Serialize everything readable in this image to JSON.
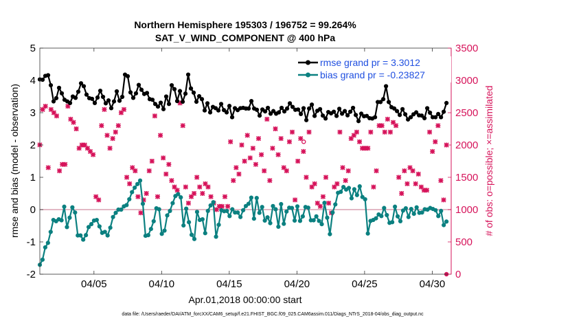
{
  "chart_data": {
    "type": "line",
    "title_line1": "Northern Hemisphere 195303 / 196752 = 99.264%",
    "title_line2": "SAT_V_WIND_COMPONENT @ 400 hPa",
    "xlabel": "Apr.01,2018 00:00:00 start",
    "ylabel_left": "rmse and bias (model - observation)",
    "ylabel_right": "# of obs: o=possible; ×=assimilated",
    "footnote": "data file: /Users/raeder/DAI/ATM_forcXX/CAM6_setup/f.e21.FHIST_BGC.f09_025.CAM6assim.011/Diags_NTrS_2018-04/obs_diag_output.nc",
    "xlim": [
      1,
      31.4
    ],
    "x_ticks": [
      5,
      10,
      15,
      20,
      25,
      30
    ],
    "x_tick_labels": [
      "04/05",
      "04/10",
      "04/15",
      "04/20",
      "04/25",
      "04/30"
    ],
    "ylim_left": [
      -2,
      5
    ],
    "y_ticks_left": [
      "-2",
      "-1",
      "0",
      "1",
      "2",
      "3",
      "4",
      "5"
    ],
    "ylim_right": [
      0,
      3500
    ],
    "y_ticks_right": [
      "0",
      "500",
      "1000",
      "1500",
      "2000",
      "2500",
      "3000",
      "3500"
    ],
    "colors": {
      "rmse": "#000000",
      "bias": "#0b8080",
      "obs": "#d6135a",
      "zero_line": "#d8a0b0",
      "legend_text": "#1f4fe0"
    },
    "series": [
      {
        "name": "rmse grand pr = 3.3012",
        "key": "rmse",
        "values": [
          4.03,
          4.02,
          4.14,
          4.16,
          3.85,
          3.35,
          3.45,
          3.77,
          3.6,
          3.4,
          3.35,
          3.3,
          3.5,
          3.46,
          3.65,
          3.91,
          3.82,
          3.56,
          3.45,
          3.43,
          3.3,
          3.47,
          3.68,
          3.49,
          3.29,
          3.38,
          3.14,
          3.35,
          3.66,
          3.37,
          3.49,
          4.18,
          4.13,
          3.63,
          3.46,
          3.6,
          3.86,
          3.71,
          3.58,
          3.61,
          3.42,
          3.4,
          3.27,
          3.19,
          3.31,
          3.11,
          3.5,
          3.27,
          3.85,
          3.73,
          3.36,
          3.67,
          3.34,
          3.59,
          4.18,
          3.75,
          3.62,
          3.34,
          3.51,
          3.42,
          3.07,
          3.29,
          3.01,
          3.18,
          3.14,
          3.07,
          3.27,
          3.08,
          3.01,
          3.21,
          2.86,
          3.14,
          3.08,
          3.14,
          3.15,
          3.13,
          3.13,
          3.36,
          3.13,
          3.09,
          2.91,
          3.1,
          3.04,
          3.15,
          2.97,
          3.05,
          2.97,
          3.01,
          3.15,
          3.04,
          3.13,
          3.29,
          3.18,
          3.09,
          3.1,
          2.96,
          3.14,
          2.77,
          3.13,
          3.25,
          2.9,
          3.06,
          3.11,
          2.91,
          2.82,
          3.02,
          2.98,
          3.03,
          2.9,
          3.12,
          2.97,
          3.05,
          2.92,
          3.03,
          3.15,
          2.93,
          2.74,
          2.97,
          2.89,
          2.9,
          2.83,
          2.82,
          2.86,
          3.33,
          3.33,
          3.42,
          3.82,
          3.33,
          3.17,
          3.13,
          3.05,
          2.93,
          3.11,
          2.95,
          2.79,
          2.86,
          2.95,
          3.01,
          2.92,
          2.91,
          2.83,
          3.14,
          3.0,
          2.86,
          2.86,
          2.96,
          2.86,
          3.03,
          3.3
        ]
      },
      {
        "name": "bias grand pr = -0.23827",
        "key": "bias",
        "values": [
          -1.71,
          -1.55,
          -1.17,
          -1.03,
          -0.69,
          -0.32,
          -0.36,
          -0.3,
          -0.33,
          0.09,
          -0.54,
          -0.25,
          0.07,
          -0.09,
          -0.8,
          -0.8,
          -0.93,
          -0.79,
          -0.54,
          -0.45,
          -0.34,
          -0.32,
          -0.52,
          -0.72,
          -0.69,
          -0.8,
          -0.56,
          -0.23,
          -0.1,
          -0.0,
          0.0,
          0.1,
          0.14,
          0.32,
          0.54,
          0.68,
          0.79,
          0.9,
          0.18,
          -0.81,
          -0.79,
          -0.6,
          -0.36,
          0.04,
          0.01,
          -0.75,
          -0.65,
          -0.18,
          -0.04,
          0.2,
          0.42,
          0.48,
          0.38,
          -0.49,
          0.03,
          -0.39,
          -0.78,
          -0.91,
          -0.07,
          -0.32,
          -0.3,
          -0.73,
          -0.04,
          0.13,
          0.23,
          -0.84,
          -0.47,
          -0.02,
          -0.05,
          -0.04,
          -0.2,
          0.01,
          -0.09,
          -0.09,
          -0.23,
          -0.02,
          0.11,
          0.18,
          0.37,
          -0.28,
          0.36,
          -0.1,
          0.08,
          -0.34,
          -0.24,
          -0.42,
          0.11,
          0.01,
          -0.53,
          0.17,
          -0.44,
          -0.06,
          0.06,
          0.05,
          -0.34,
          0.1,
          -0.35,
          -0.21,
          0.08,
          0.06,
          -0.33,
          -0.33,
          -0.21,
          -0.35,
          -0.45,
          0.21,
          -0.25,
          -0.76,
          -0.09,
          0.16,
          0.52,
          0.55,
          0.7,
          0.62,
          0.67,
          0.35,
          0.63,
          0.45,
          0.72,
          0.39,
          0.32,
          -0.74,
          -0.35,
          -0.32,
          -0.27,
          -0.15,
          -0.2,
          0.05,
          -0.17,
          -0.41,
          -0.39,
          0.09,
          -0.21,
          -0.36,
          -0.03,
          0.04,
          -0.23,
          0.02,
          -0.13,
          0.07,
          -0.1,
          -0.09,
          0.01,
          0.0,
          0.05,
          0.02,
          -0.02,
          -0.2,
          -0.04,
          -0.48,
          -0.37
        ]
      }
    ],
    "obs_assimilated_values": [
      2002,
      2550,
      2600,
      1650,
      2550,
      2500,
      2450,
      1600,
      1700,
      1700,
      2600,
      2400,
      2350,
      2250,
      1950,
      2000,
      2000,
      1950,
      1900,
      1850,
      1200,
      1150,
      2300,
      2550,
      2150,
      1950,
      2100,
      2200,
      2300,
      2500,
      2550,
      1500,
      1400,
      1650,
      1600,
      1200,
      950,
      1150,
      1250,
      1600,
      1750,
      2450,
      1200,
      2150,
      1800,
      1550,
      1700,
      1450,
      1350,
      1300,
      2650,
      2300,
      1350,
      1100,
      1200,
      1250,
      1500,
      1350,
      1250,
      1400,
      1350,
      1200,
      1100,
      1000,
      1050,
      1050,
      1200,
      1050,
      2050,
      1450,
      1650,
      1550,
      2000,
      1750,
      2150,
      1800,
      1950,
      1700,
      2100,
      1850,
      1600,
      2400,
      1450,
      1950,
      2250,
      1850,
      2100,
      1650,
      1600,
      2050,
      2200,
      1150,
      1750,
      2100,
      1900,
      1500,
      2200,
      1350,
      1400,
      1100,
      1050,
      1200,
      1500,
      1100,
      950,
      1350,
      1400,
      2200,
      1650,
      1450,
      1600,
      2100,
      2150,
      2200,
      2050,
      1950,
      1950,
      1950,
      2200,
      1350,
      1600,
      2300,
      2300,
      2200,
      2400,
      2200,
      2350,
      2300,
      1500,
      1250,
      1600,
      1400,
      1650,
      1600,
      1400,
      1550,
      1350,
      1300,
      1300,
      2200,
      1900,
      2050,
      2300,
      1450,
      1150,
      2000
    ]
  },
  "legend": {
    "rmse_label": "rmse grand pr = 3.3012",
    "bias_label": "bias grand pr = -0.23827"
  }
}
